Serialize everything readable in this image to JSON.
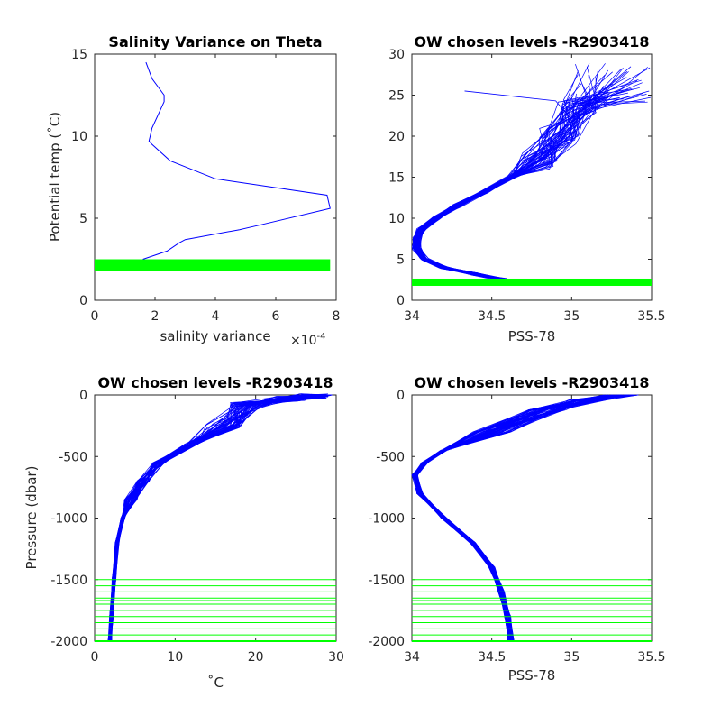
{
  "chart_data": [
    {
      "type": "line",
      "title": "Salinity Variance on Theta",
      "xlabel": "salinity variance",
      "x_exponent_label": "×10",
      "x_exponent_power": "-4",
      "ylabel": "Potential temp (˚C)",
      "xlim": [
        0,
        8
      ],
      "ylim": [
        0,
        15
      ],
      "xticks": [
        "0",
        "2",
        "4",
        "6",
        "8"
      ],
      "yticks": [
        "0",
        "5",
        "10",
        "15"
      ],
      "line_color": "#0000ff",
      "highlight_color": "#00ff00",
      "series": [
        {
          "x": [
            1.7,
            1.9,
            2.3,
            2.3,
            1.9,
            1.8,
            1.9,
            2.5,
            4.0,
            7.7,
            7.8,
            5.5,
            4.8,
            3.0,
            2.8,
            2.4,
            1.6
          ],
          "y": [
            14.5,
            13.5,
            12.5,
            12.1,
            10.5,
            9.7,
            9.5,
            8.5,
            7.4,
            6.4,
            5.6,
            4.6,
            4.3,
            3.7,
            3.5,
            3.0,
            2.5
          ]
        }
      ],
      "highlight_band": {
        "y": [
          1.8,
          2.5
        ],
        "x": [
          0,
          7.8
        ]
      }
    },
    {
      "type": "line",
      "title": "OW chosen levels -R2903418",
      "xlabel": "PSS-78",
      "ylabel": "",
      "xlim": [
        34,
        35.5
      ],
      "ylim": [
        0,
        30
      ],
      "xticks": [
        "34",
        "34.5",
        "35",
        "35.5"
      ],
      "yticks": [
        "0",
        "5",
        "10",
        "15",
        "20",
        "25",
        "30"
      ],
      "line_color": "#0000ff",
      "highlight_color": "#00ff00",
      "profile_count": 60,
      "base_profile": {
        "salinity": [
          34.57,
          34.4,
          34.2,
          34.08,
          34.03,
          34.03,
          34.06,
          34.15,
          34.28,
          34.45,
          34.62,
          34.78,
          34.92,
          35.05,
          35.22
        ],
        "theta": [
          2.5,
          3.2,
          4.0,
          5.0,
          6.3,
          7.5,
          8.7,
          10.0,
          11.5,
          13.2,
          15.0,
          17.0,
          20.0,
          23.5,
          27.5
        ]
      },
      "highlight_line": {
        "y": 2.2,
        "x": [
          34,
          35.5
        ]
      }
    },
    {
      "type": "line",
      "title": "OW chosen levels -R2903418",
      "xlabel": "˚C",
      "ylabel": "Pressure (dbar)",
      "xlim": [
        0,
        30
      ],
      "ylim": [
        -2000,
        0
      ],
      "xticks": [
        "0",
        "10",
        "20",
        "30"
      ],
      "yticks": [
        "-2000",
        "-1500",
        "-1000",
        "-500",
        "0"
      ],
      "line_color": "#0000ff",
      "highlight_color": "#00ff00",
      "profile_count": 60,
      "base_profile": {
        "temperature": [
          28.0,
          27.0,
          24.0,
          19.0,
          16.0,
          12.0,
          8.0,
          6.0,
          4.5,
          3.5,
          2.8,
          2.4,
          2.1,
          1.9
        ],
        "pressure": [
          0,
          -10,
          -30,
          -80,
          -250,
          -400,
          -550,
          -700,
          -850,
          -1000,
          -1200,
          -1500,
          -1800,
          -2000
        ]
      },
      "highlight_levels": [
        -1500,
        -1550,
        -1600,
        -1650,
        -1670,
        -1700,
        -1750,
        -1800,
        -1850,
        -1900,
        -1950,
        -2000
      ]
    },
    {
      "type": "line",
      "title": "OW chosen levels -R2903418",
      "xlabel": "PSS-78",
      "ylabel": "",
      "xlim": [
        34,
        35.5
      ],
      "ylim": [
        -2000,
        0
      ],
      "xticks": [
        "34",
        "34.5",
        "35",
        "35.5"
      ],
      "yticks": [
        "-2000",
        "-1500",
        "-1000",
        "-500",
        "0"
      ],
      "line_color": "#0000ff",
      "highlight_color": "#00ff00",
      "profile_count": 60,
      "base_profile": {
        "salinity": [
          35.3,
          35.1,
          34.85,
          34.5,
          34.2,
          34.08,
          34.02,
          34.05,
          34.2,
          34.38,
          34.5,
          34.56,
          34.6,
          34.62
        ],
        "pressure": [
          0,
          -40,
          -120,
          -300,
          -450,
          -550,
          -650,
          -800,
          -1000,
          -1200,
          -1400,
          -1600,
          -1800,
          -2000
        ]
      },
      "highlight_levels": [
        -1500,
        -1550,
        -1600,
        -1650,
        -1670,
        -1700,
        -1750,
        -1800,
        -1850,
        -1900,
        -1950,
        -2000
      ]
    }
  ]
}
